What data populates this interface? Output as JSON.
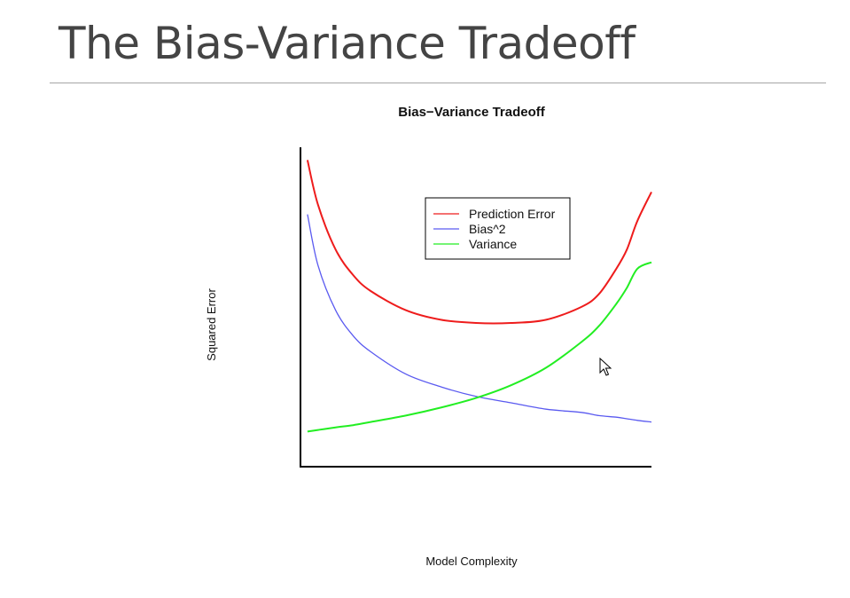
{
  "slide": {
    "title": "The Bias-Variance Tradeoff"
  },
  "chart_data": {
    "type": "line",
    "title": "Bias−Variance Tradeoff",
    "xlabel": "Model Complexity",
    "ylabel": "Squared Error",
    "xlim": [
      0,
      100
    ],
    "ylim": [
      0,
      100
    ],
    "grid": false,
    "legend_position": "top-right",
    "x": [
      2,
      5,
      10,
      15,
      20,
      30,
      40,
      50,
      60,
      70,
      80,
      85,
      90,
      93,
      96,
      100
    ],
    "series": [
      {
        "name": "Prediction Error",
        "color": "#ee1c1c",
        "values": [
          96,
          82,
          68,
          60,
          55,
          49,
          46,
          45,
          45,
          46,
          50,
          54,
          62,
          68,
          77,
          86
        ]
      },
      {
        "name": "Bias^2",
        "color": "#5a5af0",
        "values": [
          79,
          63,
          49,
          41,
          36,
          29,
          25,
          22,
          20,
          18,
          17,
          16,
          15.5,
          15,
          14.5,
          14
        ]
      },
      {
        "name": "Variance",
        "color": "#22ee22",
        "values": [
          11,
          11.5,
          12.3,
          13,
          14,
          16,
          18.5,
          21.5,
          25.5,
          31,
          39,
          44,
          51,
          56,
          62,
          64
        ]
      }
    ]
  }
}
